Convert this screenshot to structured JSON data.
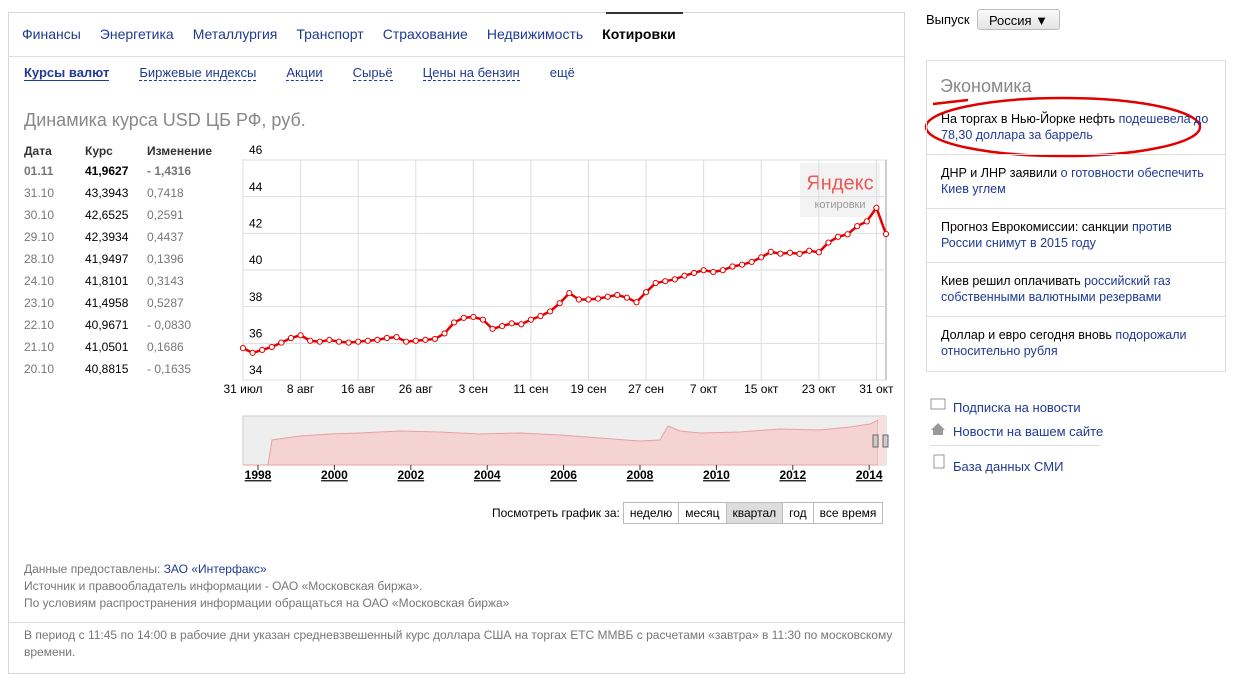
{
  "tabs": [
    "Финансы",
    "Энергетика",
    "Металлургия",
    "Транспорт",
    "Страхование",
    "Недвижимость",
    "Котировки"
  ],
  "subtabs": [
    "Курсы валют",
    "Биржевые индексы",
    "Акции",
    "Сырьё",
    "Цены на бензин",
    "ещё"
  ],
  "title": "Динамика курса USD ЦБ РФ, руб.",
  "table": {
    "header": [
      "Дата",
      "Курс",
      "Изменение"
    ],
    "rows": [
      [
        "01.11",
        "41,9627",
        "- 1,4316"
      ],
      [
        "31.10",
        "43,3943",
        "0,7418"
      ],
      [
        "30.10",
        "42,6525",
        "0,2591"
      ],
      [
        "29.10",
        "42,3934",
        "0,4437"
      ],
      [
        "28.10",
        "41,9497",
        "0,1396"
      ],
      [
        "24.10",
        "41,8101",
        "0,3143"
      ],
      [
        "23.10",
        "41,4958",
        "0,5287"
      ],
      [
        "22.10",
        "40,9671",
        "- 0,0830"
      ],
      [
        "21.10",
        "41,0501",
        "0,1686"
      ],
      [
        "20.10",
        "40,8815",
        "- 0,1635"
      ]
    ]
  },
  "chart_data": {
    "type": "line",
    "categories": [
      "31 июл",
      null,
      null,
      null,
      null,
      null,
      "8 авг",
      null,
      null,
      null,
      null,
      null,
      "16 авг",
      null,
      null,
      null,
      null,
      null,
      "26 авг",
      null,
      null,
      null,
      null,
      null,
      "3 сен",
      null,
      null,
      null,
      null,
      null,
      "11 сен",
      null,
      null,
      null,
      null,
      null,
      "19 сен",
      null,
      null,
      null,
      null,
      null,
      "27 сен",
      null,
      null,
      null,
      null,
      null,
      "7 окт",
      null,
      null,
      null,
      null,
      null,
      "15 окт",
      null,
      null,
      null,
      null,
      null,
      "23 окт",
      null,
      null,
      null,
      null,
      null,
      "31 окт",
      null
    ],
    "series": [
      {
        "color": "#e60000",
        "values": [
          35.74,
          35.48,
          35.64,
          35.8,
          36.04,
          36.29,
          36.44,
          36.14,
          36.09,
          36.19,
          36.09,
          36.04,
          36.09,
          36.14,
          36.19,
          36.29,
          36.34,
          36.09,
          36.14,
          36.19,
          36.24,
          36.54,
          37.14,
          37.39,
          37.44,
          37.29,
          36.79,
          36.94,
          37.09,
          37.04,
          37.29,
          37.49,
          37.74,
          38.19,
          38.74,
          38.39,
          38.39,
          38.44,
          38.54,
          38.64,
          38.49,
          38.24,
          38.79,
          39.29,
          39.39,
          39.49,
          39.69,
          39.84,
          39.99,
          39.89,
          39.99,
          40.19,
          40.29,
          40.44,
          40.69,
          40.99,
          40.89,
          40.94,
          40.8815,
          41.0501,
          40.9671,
          41.4958,
          41.8101,
          41.9497,
          42.3934,
          42.6525,
          43.3943,
          41.9627
        ]
      }
    ],
    "ylim": [
      34,
      46
    ],
    "yticks": [
      34,
      36,
      38,
      40,
      42,
      44,
      46
    ],
    "grid": true
  },
  "watermark": {
    "brand": "Яндекс",
    "product": "котировки"
  },
  "navigator_years": [
    "1998",
    "2000",
    "2002",
    "2004",
    "2006",
    "2008",
    "2010",
    "2012",
    "2014"
  ],
  "period": {
    "label": "Посмотреть график за:",
    "options": [
      "неделю",
      "месяц",
      "квартал",
      "год",
      "все время"
    ]
  },
  "sources": {
    "provider_label": "Данные предоставлены:",
    "provider": "ЗАО «Интерфакс»",
    "lines": [
      "Источник и правообладатель информации - ОАО «Московская биржа».",
      "По условиям распространения информации обращаться на ОАО «Московская биржа»"
    ]
  },
  "note": "В период с 11:45 по 14:00 в рабочие дни указан средневзвешенный курс доллара США на торгах ЕТС ММВБ с расчетами «завтра» в 11:30 по московскому времени.",
  "sidebar": {
    "edition_label": "Выпуск",
    "edition": "Россия ▼",
    "section": "Экономика",
    "news": [
      {
        "text": "На торгах в Нью-Йорке нефть",
        "link": "подешевела до 78,30 доллара за баррель"
      },
      {
        "text": "ДНР и ЛНР заявили",
        "link": "о готовности обеспечить Киев углем"
      },
      {
        "text": "Прогноз Еврокомиссии: санкции",
        "link": "против России снимут в 2015 году"
      },
      {
        "text": "Киев решил оплачивать",
        "link": "российский газ собственными валютными резервами"
      },
      {
        "text": "Доллар и евро сегодня вновь",
        "link": "подорожали относительно рубля"
      }
    ],
    "links": [
      "Подписка на новости",
      "Новости на вашем сайте",
      "База данных СМИ"
    ]
  }
}
